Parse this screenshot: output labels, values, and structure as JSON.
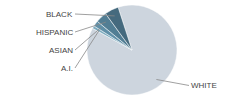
{
  "chart_data": {
    "type": "pie",
    "categories": [
      "WHITE",
      "A.I.",
      "ASIAN",
      "HISPANIC",
      "BLACK"
    ],
    "values": [
      88,
      1,
      2,
      4,
      5
    ],
    "colors": [
      "#cdd5de",
      "#7baabe",
      "#6090a8",
      "#527e94",
      "#456a7e"
    ]
  }
}
